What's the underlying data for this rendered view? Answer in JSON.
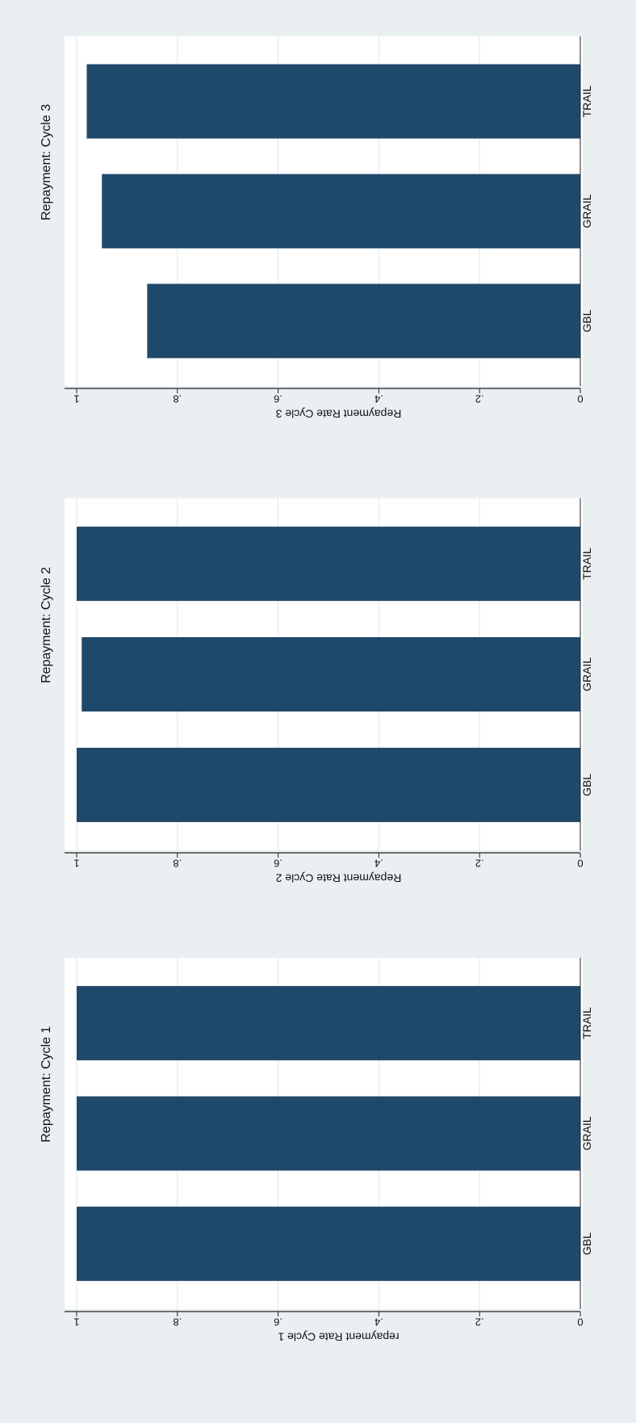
{
  "colors": {
    "background": "#eaf0f2",
    "plot_area": "#ffffff",
    "bar": "#1f496b",
    "grid": "#e4eaed",
    "axis": "#222222"
  },
  "chart_data": [
    {
      "type": "bar",
      "title": "Repayment: Cycle 1",
      "ylabel": "repayment Rate Cycle 1",
      "xlabel": "",
      "categories": [
        "GBL",
        "GRAIL",
        "TRAIL"
      ],
      "values": [
        1.0,
        1.0,
        1.0
      ],
      "ylim": [
        0,
        1
      ],
      "yticks": [
        "0",
        ".2",
        ".4",
        ".6",
        ".8",
        "1"
      ],
      "grid": true,
      "orientation": "figure rotated 90° clockwise"
    },
    {
      "type": "bar",
      "title": "Repayment: Cycle 2",
      "ylabel": "Repayment Rate Cycle 2",
      "xlabel": "",
      "categories": [
        "GBL",
        "GRAIL",
        "TRAIL"
      ],
      "values": [
        1.0,
        0.99,
        1.0
      ],
      "ylim": [
        0,
        1
      ],
      "yticks": [
        "0",
        ".2",
        ".4",
        ".6",
        ".8",
        "1"
      ],
      "grid": true,
      "orientation": "figure rotated 90° clockwise"
    },
    {
      "type": "bar",
      "title": "Repayment: Cycle 3",
      "ylabel": "Repayment Rate Cycle 3",
      "xlabel": "",
      "categories": [
        "GBL",
        "GRAIL",
        "TRAIL"
      ],
      "values": [
        0.86,
        0.95,
        0.98
      ],
      "ylim": [
        0,
        1
      ],
      "yticks": [
        "0",
        ".2",
        ".4",
        ".6",
        ".8",
        "1"
      ],
      "grid": true,
      "orientation": "figure rotated 90° clockwise"
    }
  ]
}
